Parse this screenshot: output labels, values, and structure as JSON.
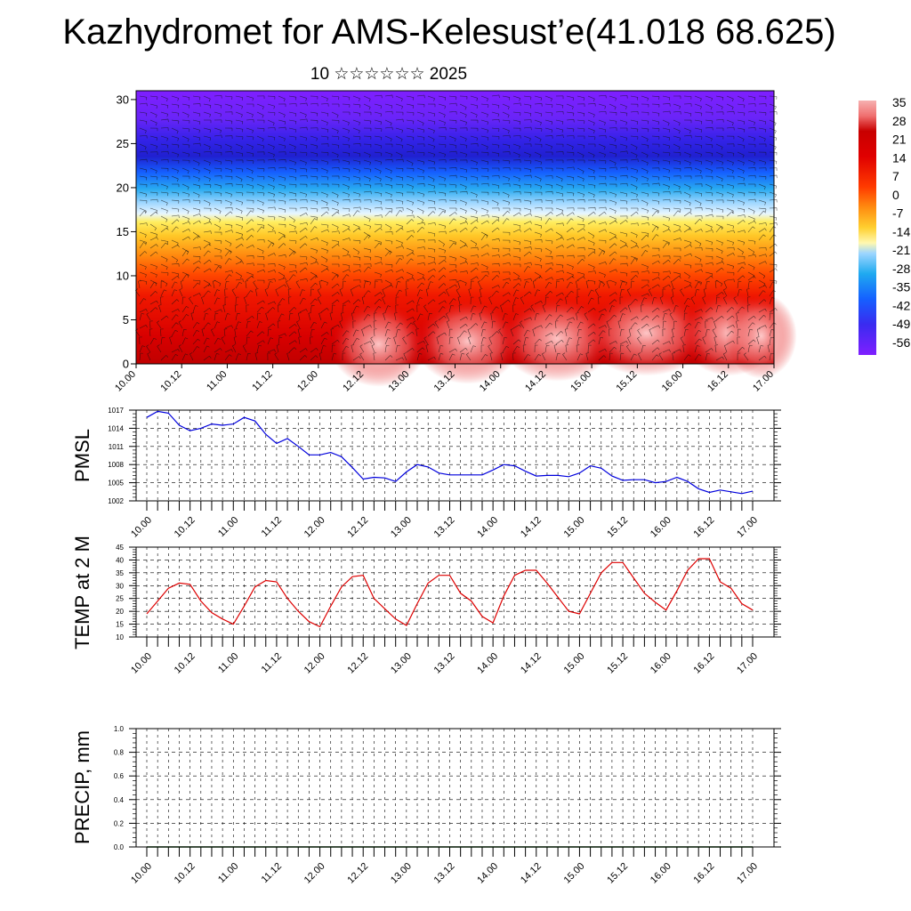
{
  "header": {
    "title": "Kazhydromet for AMS-Kelesust’e(41.018 68.625)",
    "subtitle": "10 ☆☆☆☆☆☆ 2025"
  },
  "colors": {
    "pmsl_line": "#0000dd",
    "temp_line": "#dd0000",
    "precip_line": "#004400",
    "colorbar": [
      "#7f1fff",
      "#3a2bf0",
      "#1560ff",
      "#1faaf0",
      "#9ed6ff",
      "#ffee40",
      "#ffb020",
      "#ff7a10",
      "#ff3b00",
      "#e00000",
      "#c80000",
      "#f07070",
      "#f6b0b0"
    ]
  },
  "chart_data": [
    {
      "type": "heatmap",
      "name_hint": "cross-section",
      "x_tick_labels": [
        "10.00",
        "10.12",
        "11.00",
        "11.12",
        "12.00",
        "12.12",
        "13.00",
        "13.12",
        "14.00",
        "14.12",
        "15.00",
        "15.12",
        "16.00",
        "16.12",
        "17.00"
      ],
      "y_ticks": [
        0,
        5,
        10,
        15,
        20,
        25,
        30
      ],
      "ylim": [
        0,
        31
      ],
      "colorbar_labels": [
        "35",
        "28",
        "21",
        "14",
        "7",
        "0",
        "-7",
        "-14",
        "-21",
        "-28",
        "-35",
        "-42",
        "-49",
        "-56"
      ],
      "colorbar_bands": [
        {
          "y_min": 0,
          "y_max": 3,
          "color": "#c80000"
        },
        {
          "y_min": 3,
          "y_max": 8,
          "color": "#e00000"
        },
        {
          "y_min": 8,
          "y_max": 11,
          "color": "#ff4a00"
        },
        {
          "y_min": 11,
          "y_max": 13,
          "color": "#ff8c10"
        },
        {
          "y_min": 13,
          "y_max": 16,
          "color": "#ffd030"
        },
        {
          "y_min": 16,
          "y_max": 17.5,
          "color": "#ffffa0"
        },
        {
          "y_min": 17.5,
          "y_max": 19,
          "color": "#9ed6ff"
        },
        {
          "y_min": 19,
          "y_max": 21,
          "color": "#1faaf0"
        },
        {
          "y_min": 21,
          "y_max": 22.5,
          "color": "#1560ff"
        },
        {
          "y_min": 22.5,
          "y_max": 25,
          "color": "#2a2ad8"
        },
        {
          "y_min": 25,
          "y_max": 27,
          "color": "#4a2cf0"
        },
        {
          "y_min": 27,
          "y_max": 31,
          "color": "#7f1fff"
        }
      ],
      "grid": true,
      "legend": "right"
    },
    {
      "type": "line",
      "ylabel": "PMSL",
      "ylim": [
        1002,
        1017
      ],
      "y_ticks": [
        1002,
        1005,
        1008,
        1011,
        1014,
        1017
      ],
      "x_tick_labels": [
        "10.00",
        "10.12",
        "11.00",
        "11.12",
        "12.00",
        "12.12",
        "13.00",
        "13.12",
        "14.00",
        "14.12",
        "15.00",
        "15.12",
        "16.00",
        "16.12",
        "17.00"
      ],
      "series": [
        {
          "values": [
            1015.8,
            1016.8,
            1016.5,
            1014.5,
            1013.6,
            1014.0,
            1014.7,
            1014.5,
            1014.7,
            1015.8,
            1015.2,
            1013.0,
            1011.5,
            1012.3,
            1011.0,
            1009.6,
            1009.6,
            1010.0,
            1009.3,
            1007.5,
            1005.6,
            1005.9,
            1005.8,
            1005.2,
            1006.8,
            1008.0,
            1007.6,
            1006.6,
            1006.3,
            1006.3,
            1006.3,
            1006.3,
            1007.1,
            1008.0,
            1007.8,
            1006.9,
            1006.1,
            1006.2,
            1006.2,
            1006.0,
            1006.6,
            1007.8,
            1007.4,
            1006.1,
            1005.4,
            1005.5,
            1005.5,
            1005.0,
            1005.2,
            1005.9,
            1005.2,
            1004.0,
            1003.4,
            1003.8,
            1003.5,
            1003.2,
            1003.6
          ]
        }
      ],
      "grid": true
    },
    {
      "type": "line",
      "ylabel": "TEMP at 2 M",
      "ylim": [
        10,
        45
      ],
      "y_ticks": [
        10,
        15,
        20,
        25,
        30,
        35,
        40,
        45
      ],
      "x_tick_labels": [
        "10.00",
        "10.12",
        "11.00",
        "11.12",
        "12.00",
        "12.12",
        "13.00",
        "13.12",
        "14.00",
        "14.12",
        "15.00",
        "15.12",
        "16.00",
        "16.12",
        "17.00"
      ],
      "series": [
        {
          "values": [
            19,
            24,
            29,
            31,
            30.5,
            24,
            19.5,
            17,
            15,
            22,
            29.5,
            32,
            31.5,
            25,
            20,
            16,
            14,
            22,
            29.5,
            33.5,
            34,
            25,
            21,
            17,
            14.5,
            23,
            31,
            34,
            34,
            27,
            24,
            18,
            15.5,
            26,
            34,
            36,
            36,
            31,
            25.5,
            20,
            19,
            27,
            35,
            39,
            39,
            33,
            27,
            23.5,
            20.5,
            28,
            36,
            40.5,
            40.5,
            31.5,
            29,
            23,
            20.5
          ]
        }
      ],
      "grid": true
    },
    {
      "type": "line",
      "ylabel": "PRECIP, mm",
      "ylim": [
        0,
        1
      ],
      "y_ticks": [
        0.0,
        0.2,
        0.4,
        0.6,
        0.8,
        1.0
      ],
      "y_tick_labels": [
        "0.0",
        "0.2",
        "0.4",
        "0.6",
        "0.8",
        "1.0"
      ],
      "x_tick_labels": [
        "10.00",
        "10.12",
        "11.00",
        "11.12",
        "12.00",
        "12.12",
        "13.00",
        "13.12",
        "14.00",
        "14.12",
        "15.00",
        "15.12",
        "16.00",
        "16.12",
        "17.00"
      ],
      "series": [
        {
          "values": [
            0,
            0,
            0,
            0,
            0,
            0,
            0,
            0,
            0,
            0,
            0,
            0,
            0,
            0,
            0,
            0,
            0,
            0,
            0,
            0,
            0,
            0,
            0,
            0,
            0,
            0,
            0,
            0,
            0,
            0,
            0,
            0,
            0,
            0,
            0,
            0,
            0,
            0,
            0,
            0,
            0,
            0,
            0,
            0,
            0,
            0,
            0,
            0,
            0,
            0,
            0,
            0,
            0,
            0,
            0,
            0,
            0
          ]
        }
      ],
      "grid": true
    }
  ]
}
